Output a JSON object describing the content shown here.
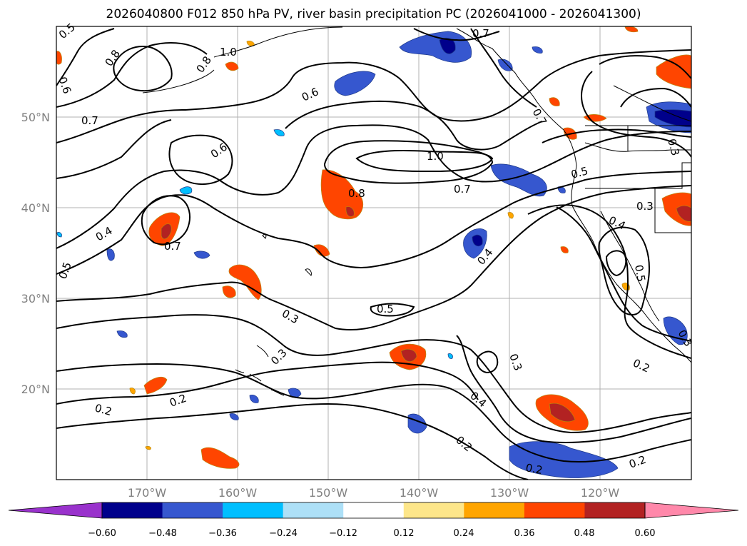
{
  "title": "2026040800 F012 850 hPa PV, river basin precipitation PC (2026041000 - 2026041300)",
  "map": {
    "lon_range": [
      -180,
      -110
    ],
    "lat_range": [
      10,
      60
    ],
    "lat_ticks": [
      {
        "value": 50,
        "label": "50°N"
      },
      {
        "value": 40,
        "label": "40°N"
      },
      {
        "value": 30,
        "label": "30°N"
      },
      {
        "value": 20,
        "label": "20°N"
      }
    ],
    "lon_ticks": [
      {
        "value": -170,
        "label": "170°W"
      },
      {
        "value": -160,
        "label": "160°W"
      },
      {
        "value": -150,
        "label": "150°W"
      },
      {
        "value": -140,
        "label": "140°W"
      },
      {
        "value": -130,
        "label": "130°W"
      },
      {
        "value": -120,
        "label": "120°W"
      }
    ],
    "contour_labels": [
      "0.5",
      "0.6",
      "0.7",
      "0.8",
      "0.8",
      "1.0",
      "0.6",
      "0.7",
      "0.6",
      "1.0",
      "0.8",
      "0.7",
      "0.5",
      "0.4",
      "0.7",
      "0.4",
      "0.5",
      "0.3",
      "0.5",
      "0.3",
      "0.3",
      "0.4",
      "0.5",
      "0.3",
      "0.4",
      "0.2",
      "0.2",
      "0.2",
      "0.2",
      "0.2",
      "0.2",
      "0.3",
      "0.7",
      "0.3"
    ]
  },
  "colorbar": {
    "ticks": [
      "−0.60",
      "−0.48",
      "−0.36",
      "−0.24",
      "−0.12",
      "0.12",
      "0.24",
      "0.36",
      "0.48",
      "0.60"
    ],
    "colors": [
      "#9932cc",
      "#00008b",
      "#3657cf",
      "#00bfff",
      "#ade0f7",
      "#ffffff",
      "#fde68a",
      "#ffa500",
      "#ff4500",
      "#b22222",
      "#ff88aa"
    ]
  }
}
